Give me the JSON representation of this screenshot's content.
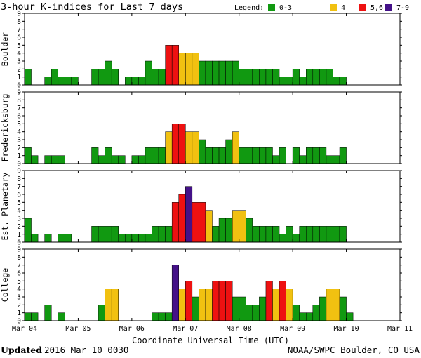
{
  "chart_data": {
    "type": "bar",
    "title": "3-hour K-indices for Last 7 days",
    "legend_label": "Legend:",
    "legend": [
      {
        "label": "0-3",
        "color": "#119911"
      },
      {
        "label": "4",
        "color": "#f1c111"
      },
      {
        "label": "5,6",
        "color": "#ee1111"
      },
      {
        "label": "7-9",
        "color": "#441188"
      }
    ],
    "legend_position": "top-right",
    "xlabel": "Coordinate Universal Time (UTC)",
    "x_ticks": [
      "Mar 04",
      "Mar 05",
      "Mar 06",
      "Mar 07",
      "Mar 08",
      "Mar 09",
      "Mar 10",
      "Mar 11"
    ],
    "y_ticks": [
      "0",
      "1",
      "2",
      "3",
      "4",
      "5",
      "6",
      "7",
      "8",
      "9"
    ],
    "ylim": [
      0,
      9
    ],
    "grid": false,
    "bars_per_day": 8,
    "series": [
      {
        "name": "Boulder",
        "values": [
          2,
          0,
          0,
          1,
          2,
          1,
          1,
          1,
          0,
          0,
          2,
          2,
          3,
          2,
          0,
          1,
          1,
          1,
          3,
          2,
          2,
          5,
          5,
          4,
          4,
          4,
          3,
          3,
          3,
          3,
          3,
          3,
          2,
          2,
          2,
          2,
          2,
          2,
          1,
          1,
          2,
          1,
          2,
          2,
          2,
          2,
          1,
          1,
          0,
          0,
          0,
          0,
          0,
          0,
          0,
          0
        ]
      },
      {
        "name": "Fredericksburg",
        "values": [
          2,
          1,
          0,
          1,
          1,
          1,
          0,
          0,
          0,
          0,
          2,
          1,
          2,
          1,
          1,
          0,
          1,
          1,
          2,
          2,
          2,
          4,
          5,
          5,
          4,
          4,
          3,
          2,
          2,
          2,
          3,
          4,
          2,
          2,
          2,
          2,
          2,
          1,
          2,
          0,
          2,
          1,
          2,
          2,
          2,
          1,
          1,
          2,
          0,
          0,
          0,
          0,
          0,
          0,
          0,
          0
        ]
      },
      {
        "name": "Est. Planetary",
        "values": [
          3,
          1,
          0,
          1,
          0,
          1,
          1,
          0,
          0,
          0,
          2,
          2,
          2,
          2,
          1,
          1,
          1,
          1,
          1,
          2,
          2,
          2,
          5,
          6,
          7,
          5,
          5,
          4,
          2,
          3,
          3,
          4,
          4,
          3,
          2,
          2,
          2,
          2,
          1,
          2,
          1,
          2,
          2,
          2,
          2,
          2,
          2,
          2,
          0,
          0,
          0,
          0,
          0,
          0,
          0,
          0
        ]
      },
      {
        "name": "College",
        "values": [
          1,
          1,
          0,
          2,
          0,
          1,
          0,
          0,
          0,
          0,
          0,
          2,
          4,
          4,
          0,
          0,
          0,
          0,
          0,
          1,
          1,
          1,
          7,
          4,
          5,
          3,
          4,
          4,
          5,
          5,
          5,
          3,
          3,
          2,
          2,
          3,
          5,
          4,
          5,
          4,
          2,
          1,
          1,
          2,
          3,
          4,
          4,
          3,
          1,
          0,
          0,
          0,
          0,
          0,
          0,
          0
        ]
      }
    ]
  },
  "footer": {
    "updated_label": "Updated",
    "updated_value": "2016 Mar 10 0030",
    "source": "NOAA/SWPC Boulder, CO USA"
  }
}
